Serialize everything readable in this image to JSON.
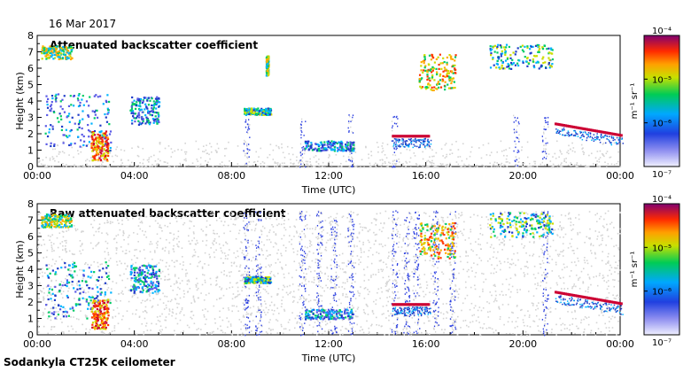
{
  "date_label": "16 Mar 2017",
  "footer": "Sodankyla CT25K ceilometer",
  "colors": {
    "bg": "#ffffff",
    "noise": "#d4d4d4",
    "scale": [
      "#d9d9ee",
      "#5a5ae6",
      "#1e3cc8",
      "#00b4ff",
      "#00cc66",
      "#ccdd00",
      "#ffaa00",
      "#ff3300",
      "#cc0033",
      "#800060"
    ]
  },
  "chart_data": [
    {
      "type": "heatmap",
      "title": "Attenuated backscatter coefficient",
      "xlabel": "Time (UTC)",
      "ylabel": "Height (km)",
      "x_ticks": [
        "00:00",
        "04:00",
        "08:00",
        "12:00",
        "16:00",
        "20:00",
        "00:00"
      ],
      "xlim": [
        0,
        24
      ],
      "ylim": [
        0,
        8
      ],
      "y_ticks": [
        0,
        1,
        2,
        3,
        4,
        5,
        6,
        7,
        8
      ],
      "colorbar": {
        "label": "m⁻¹ sr⁻¹",
        "scale": "log",
        "range": [
          1e-07,
          0.0001
        ],
        "ticks": [
          "10⁻⁷",
          "10⁻⁶",
          "10⁻⁵",
          "10⁻⁴"
        ]
      },
      "features": [
        {
          "kind": "cloud",
          "t": 0.15,
          "t2": 1.4,
          "h": 6.6,
          "h2": 7.4,
          "level": 6
        },
        {
          "kind": "cloud",
          "t": 0.3,
          "t2": 3.0,
          "h": 1.0,
          "h2": 4.5,
          "level": 4
        },
        {
          "kind": "cloud",
          "t": 2.2,
          "t2": 2.9,
          "h": 0.4,
          "h2": 2.2,
          "level": 8
        },
        {
          "kind": "cloud",
          "t": 3.8,
          "t2": 5.0,
          "h": 2.6,
          "h2": 4.3,
          "level": 4
        },
        {
          "kind": "cloud",
          "t": 8.5,
          "t2": 9.6,
          "h": 3.2,
          "h2": 3.6,
          "level": 5
        },
        {
          "kind": "cloud",
          "t": 9.4,
          "t2": 9.5,
          "h": 5.6,
          "h2": 6.8,
          "level": 6
        },
        {
          "kind": "cloud",
          "t": 11.0,
          "t2": 13.0,
          "h": 1.0,
          "h2": 1.6,
          "level": 4
        },
        {
          "kind": "layer",
          "t": 14.6,
          "t2": 16.1,
          "h": 1.85,
          "h2": 1.85,
          "level": 8
        },
        {
          "kind": "cloud",
          "t": 15.7,
          "t2": 17.2,
          "h": 4.7,
          "h2": 6.9,
          "level": 7
        },
        {
          "kind": "cloud",
          "t": 18.6,
          "t2": 21.2,
          "h": 6.0,
          "h2": 7.5,
          "level": 5
        },
        {
          "kind": "layer",
          "t": 21.3,
          "t2": 24.0,
          "h": 2.6,
          "h2": 1.9,
          "level": 8
        }
      ]
    },
    {
      "type": "heatmap",
      "title": "Raw attenuated backscatter coefficient",
      "xlabel": "Time (UTC)",
      "ylabel": "Height (km)",
      "x_ticks": [
        "00:00",
        "04:00",
        "08:00",
        "12:00",
        "16:00",
        "20:00",
        "00:00"
      ],
      "xlim": [
        0,
        24
      ],
      "ylim": [
        0,
        8
      ],
      "y_ticks": [
        0,
        1,
        2,
        3,
        4,
        5,
        6,
        7,
        8
      ],
      "colorbar": {
        "label": "m⁻¹ sr⁻¹",
        "scale": "log",
        "range": [
          1e-07,
          0.0001
        ],
        "ticks": [
          "10⁻⁷",
          "10⁻⁶",
          "10⁻⁵",
          "10⁻⁴"
        ]
      },
      "features": [
        {
          "kind": "cloud",
          "t": 0.15,
          "t2": 1.4,
          "h": 6.6,
          "h2": 7.4,
          "level": 6
        },
        {
          "kind": "cloud",
          "t": 0.3,
          "t2": 3.0,
          "h": 1.0,
          "h2": 4.5,
          "level": 4
        },
        {
          "kind": "cloud",
          "t": 2.2,
          "t2": 2.9,
          "h": 0.4,
          "h2": 2.2,
          "level": 8
        },
        {
          "kind": "cloud",
          "t": 3.8,
          "t2": 5.0,
          "h": 2.6,
          "h2": 4.3,
          "level": 4
        },
        {
          "kind": "cloud",
          "t": 8.5,
          "t2": 9.6,
          "h": 3.2,
          "h2": 3.6,
          "level": 5
        },
        {
          "kind": "cloud",
          "t": 11.0,
          "t2": 13.0,
          "h": 1.0,
          "h2": 1.6,
          "level": 4
        },
        {
          "kind": "layer",
          "t": 14.6,
          "t2": 16.1,
          "h": 1.85,
          "h2": 1.85,
          "level": 8
        },
        {
          "kind": "cloud",
          "t": 15.7,
          "t2": 17.2,
          "h": 4.7,
          "h2": 6.9,
          "level": 7
        },
        {
          "kind": "cloud",
          "t": 18.6,
          "t2": 21.2,
          "h": 6.0,
          "h2": 7.5,
          "level": 5
        },
        {
          "kind": "layer",
          "t": 21.3,
          "t2": 24.0,
          "h": 2.6,
          "h2": 1.9,
          "level": 8
        }
      ]
    }
  ]
}
